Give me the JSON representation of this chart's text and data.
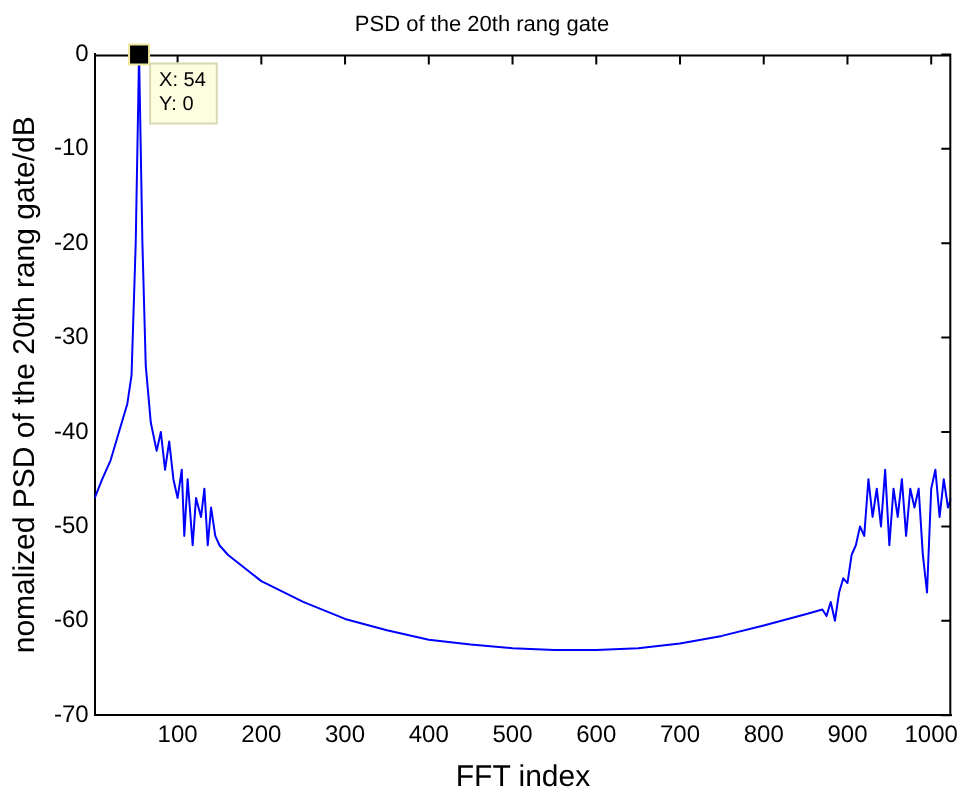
{
  "chart_data": {
    "type": "line",
    "title": "PSD of the 20th rang gate",
    "xlabel": "FFT index",
    "ylabel": "nomalized PSD of the 20th rang gate/dB",
    "x": [
      1,
      10,
      20,
      30,
      40,
      45,
      50,
      54,
      58,
      62,
      68,
      75,
      80,
      85,
      90,
      95,
      100,
      105,
      108,
      112,
      118,
      122,
      128,
      132,
      136,
      140,
      145,
      150,
      160,
      200,
      250,
      300,
      350,
      400,
      450,
      500,
      550,
      600,
      650,
      700,
      750,
      800,
      850,
      870,
      875,
      880,
      885,
      890,
      895,
      900,
      905,
      910,
      915,
      920,
      925,
      930,
      935,
      940,
      945,
      950,
      955,
      960,
      965,
      970,
      975,
      980,
      985,
      990,
      995,
      1000,
      1005,
      1010,
      1015,
      1020,
      1024
    ],
    "series": [
      {
        "color": "#0000ff",
        "values": [
          -47,
          -45,
          -43,
          -40,
          -37,
          -34,
          -20,
          0,
          -20,
          -33,
          -39,
          -42,
          -40,
          -44,
          -41,
          -45,
          -47,
          -44,
          -51,
          -45,
          -52,
          -47,
          -49,
          -46,
          -52,
          -48,
          -51,
          -52,
          -53,
          -55.8,
          -58,
          -59.8,
          -61,
          -62,
          -62.5,
          -62.9,
          -63.1,
          -63.1,
          -62.9,
          -62.4,
          -61.6,
          -60.5,
          -59.3,
          -58.8,
          -59.5,
          -58,
          -60,
          -57,
          -55.5,
          -56,
          -53,
          -52,
          -50,
          -51,
          -45,
          -49,
          -46,
          -50,
          -44,
          -52,
          -46,
          -49,
          -45,
          -51,
          -46,
          -48,
          -46,
          -53,
          -57,
          -46,
          -44,
          -49,
          -45,
          -48,
          -47
        ]
      }
    ],
    "xlim": [
      1,
      1024
    ],
    "xticks": [
      100,
      200,
      300,
      400,
      500,
      600,
      700,
      800,
      900,
      1000
    ],
    "ylim": [
      -70,
      0
    ],
    "yticks": [
      -70,
      -60,
      -50,
      -40,
      -30,
      -20,
      -10,
      0
    ],
    "grid": false,
    "legend": false,
    "marker": "none",
    "line_style": "solid",
    "annotations": [
      {
        "text": "X: 54\nY: 0",
        "x": 54,
        "y": 0
      }
    ]
  }
}
